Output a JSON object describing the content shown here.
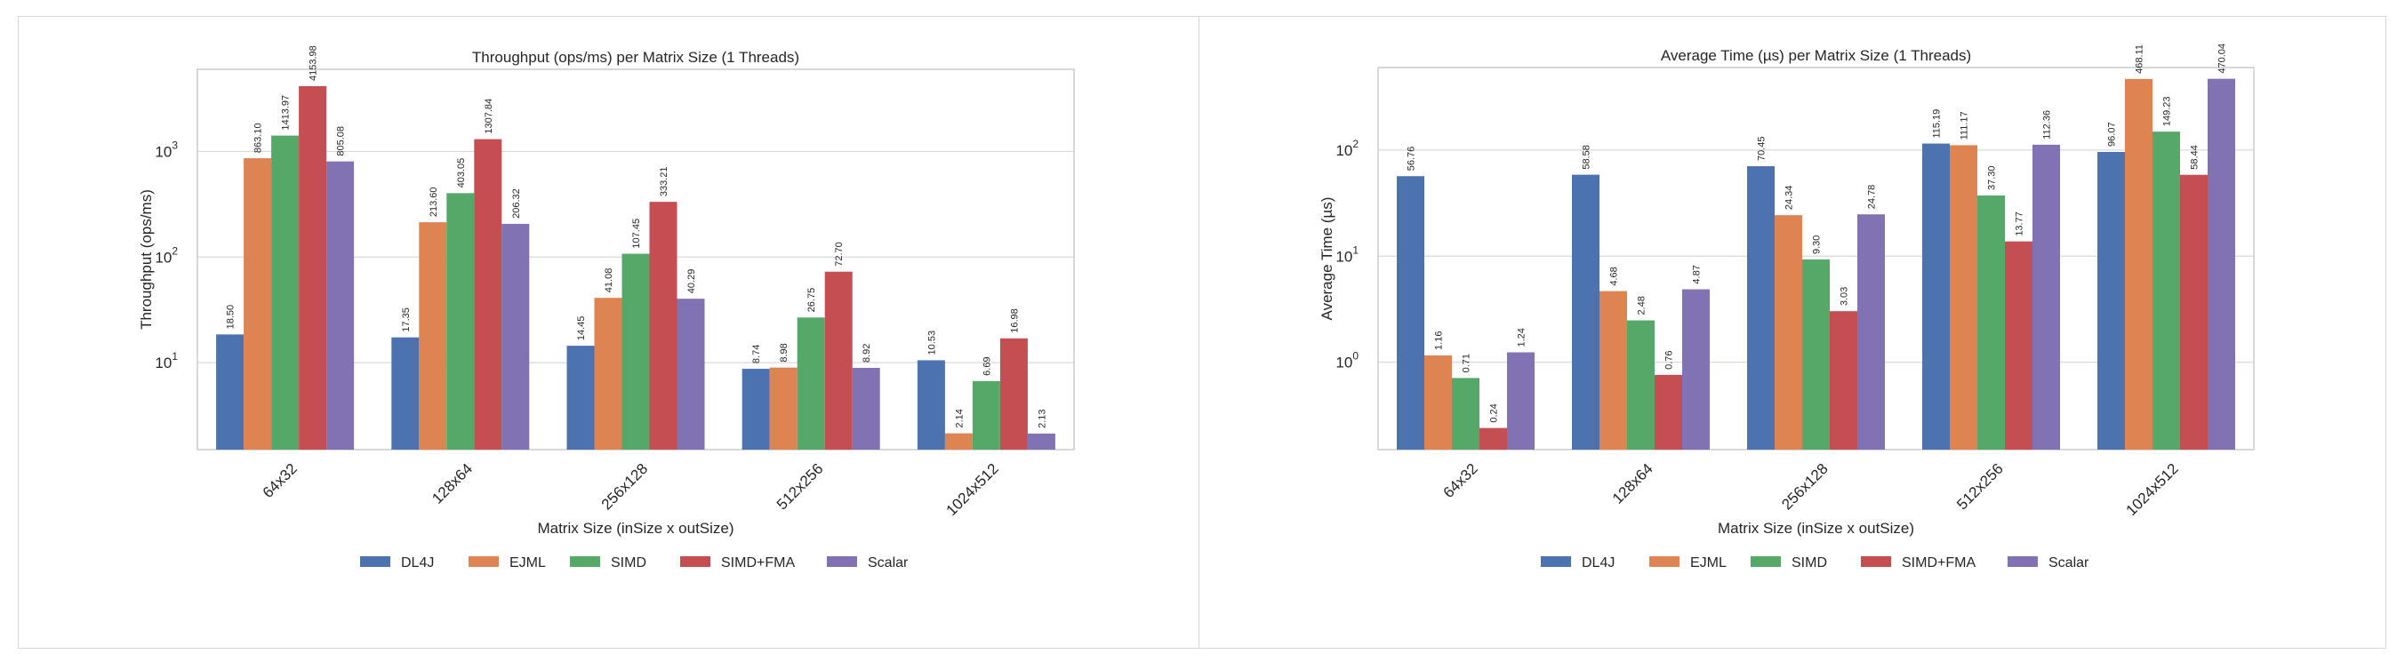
{
  "chart_data": [
    {
      "type": "bar",
      "title": "Throughput (ops/ms) per Matrix Size (1 Threads)",
      "xlabel": "Matrix Size (inSize x outSize)",
      "ylabel": "Throughput (ops/ms)",
      "yscale": "log",
      "ylim": [
        1.5,
        6000
      ],
      "yticks": [
        {
          "value": 10,
          "exp": "1"
        },
        {
          "value": 100,
          "exp": "2"
        },
        {
          "value": 1000,
          "exp": "3"
        }
      ],
      "grid": true,
      "legend_position": "bottom-center",
      "categories": [
        "64x32",
        "128x64",
        "256x128",
        "512x256",
        "1024x512"
      ],
      "series": [
        {
          "name": "DL4J",
          "color": "#4c72b0",
          "values": [
            18.5,
            17.35,
            14.45,
            8.74,
            10.53
          ],
          "labels": [
            "18.50",
            "17.35",
            "14.45",
            "8.74",
            "10.53"
          ]
        },
        {
          "name": "EJML",
          "color": "#dd8452",
          "values": [
            863.1,
            213.6,
            41.08,
            8.98,
            2.14
          ],
          "labels": [
            "863.10",
            "213.60",
            "41.08",
            "8.98",
            "2.14"
          ]
        },
        {
          "name": "SIMD",
          "color": "#55a868",
          "values": [
            1413.97,
            403.05,
            107.45,
            26.75,
            6.69
          ],
          "labels": [
            "1413.97",
            "403.05",
            "107.45",
            "26.75",
            "6.69"
          ]
        },
        {
          "name": "SIMD+FMA",
          "color": "#c44e52",
          "values": [
            4153.98,
            1307.84,
            333.21,
            72.7,
            16.98
          ],
          "labels": [
            "4153.98",
            "1307.84",
            "333.21",
            "72.70",
            "16.98"
          ]
        },
        {
          "name": "Scalar",
          "color": "#8172b3",
          "values": [
            805.08,
            206.32,
            40.29,
            8.92,
            2.13
          ],
          "labels": [
            "805.08",
            "206.32",
            "40.29",
            "8.92",
            "2.13"
          ]
        }
      ]
    },
    {
      "type": "bar",
      "title": "Average Time (µs) per Matrix Size (1 Threads)",
      "xlabel": "Matrix Size (inSize x outSize)",
      "ylabel": "Average Time (µs)",
      "yscale": "log",
      "ylim": [
        0.15,
        600
      ],
      "yticks": [
        {
          "value": 1,
          "exp": "0"
        },
        {
          "value": 10,
          "exp": "1"
        },
        {
          "value": 100,
          "exp": "2"
        }
      ],
      "grid": true,
      "legend_position": "bottom-center",
      "categories": [
        "64x32",
        "128x64",
        "256x128",
        "512x256",
        "1024x512"
      ],
      "series": [
        {
          "name": "DL4J",
          "color": "#4c72b0",
          "values": [
            56.76,
            58.58,
            70.45,
            115.19,
            96.07
          ],
          "labels": [
            "56.76",
            "58.58",
            "70.45",
            "115.19",
            "96.07"
          ]
        },
        {
          "name": "EJML",
          "color": "#dd8452",
          "values": [
            1.16,
            4.68,
            24.34,
            111.17,
            468.11
          ],
          "labels": [
            "1.16",
            "4.68",
            "24.34",
            "111.17",
            "468.11"
          ]
        },
        {
          "name": "SIMD",
          "color": "#55a868",
          "values": [
            0.71,
            2.48,
            9.3,
            37.3,
            149.23
          ],
          "labels": [
            "0.71",
            "2.48",
            "9.30",
            "37.30",
            "149.23"
          ]
        },
        {
          "name": "SIMD+FMA",
          "color": "#c44e52",
          "values": [
            0.24,
            0.76,
            3.03,
            13.77,
            58.44
          ],
          "labels": [
            "0.24",
            "0.76",
            "3.03",
            "13.77",
            "58.44"
          ]
        },
        {
          "name": "Scalar",
          "color": "#8172b3",
          "values": [
            1.24,
            4.87,
            24.78,
            112.36,
            470.04
          ],
          "labels": [
            "1.24",
            "4.87",
            "24.78",
            "112.36",
            "470.04"
          ]
        }
      ]
    }
  ]
}
